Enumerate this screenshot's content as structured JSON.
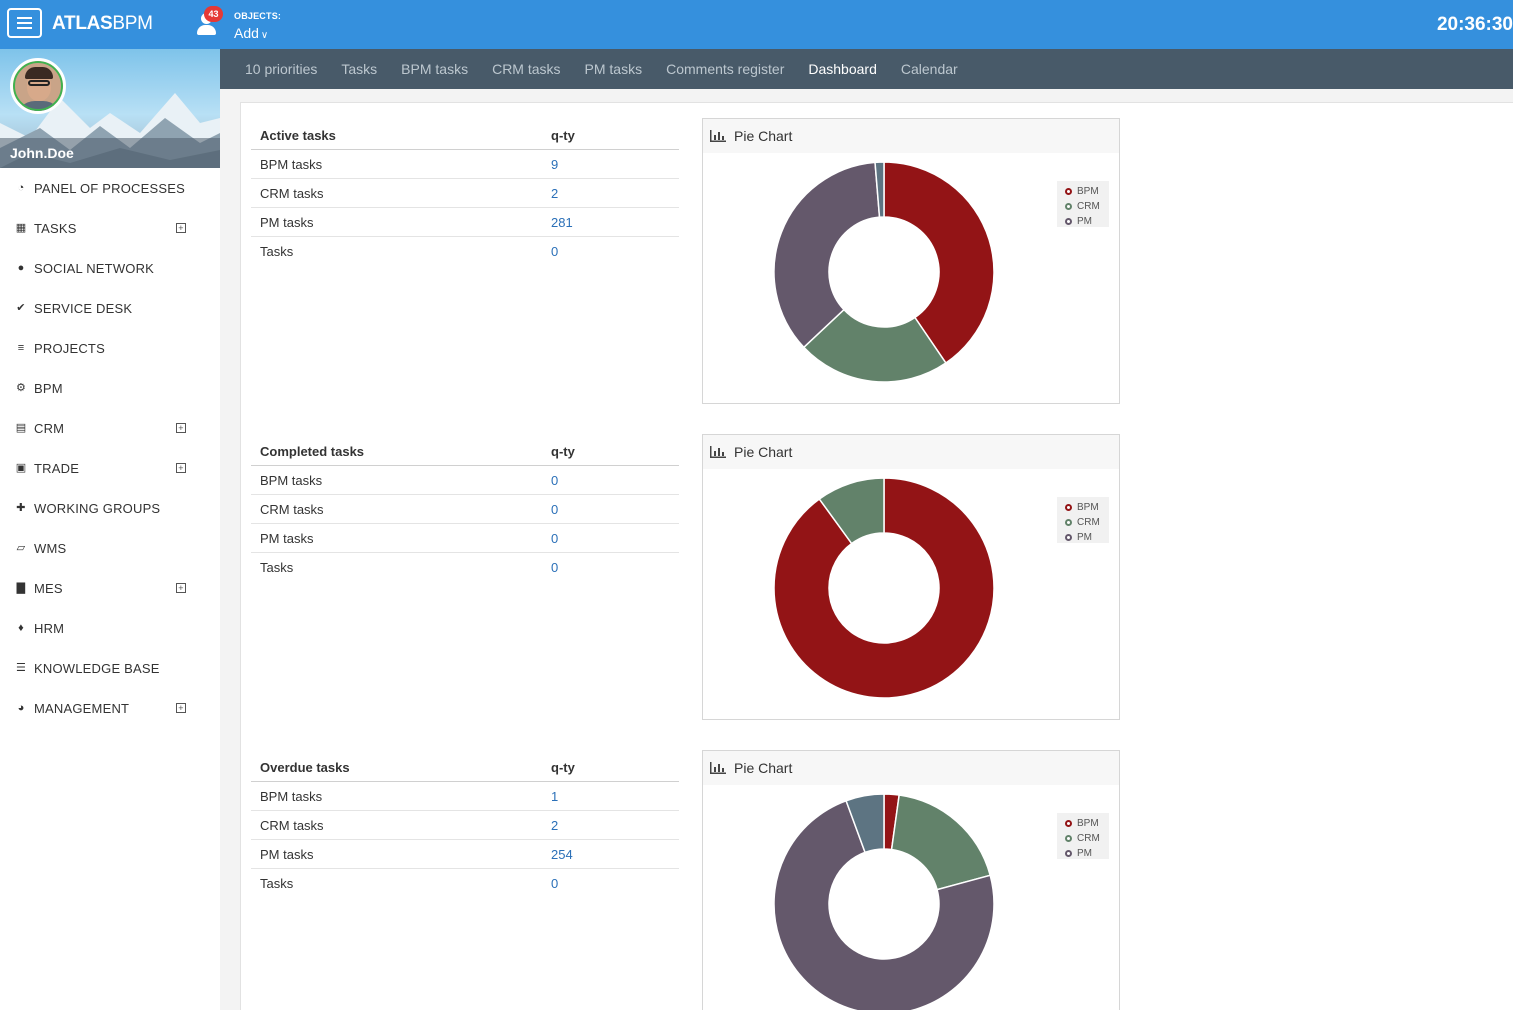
{
  "app": {
    "logo_bold": "ATLAS",
    "logo_light": "BPM",
    "notification_count": "43",
    "objects_label": "OBJECTS:",
    "add_label": "Add",
    "clock": "20:36:30"
  },
  "user": {
    "name": "John.Doe"
  },
  "sidebar": {
    "items": [
      {
        "label": "PANEL OF PROCESSES",
        "icon": "dashboard-icon",
        "expandable": false
      },
      {
        "label": "TASKS",
        "icon": "calendar-icon",
        "expandable": true
      },
      {
        "label": "SOCIAL NETWORK",
        "icon": "chat-icon",
        "expandable": false
      },
      {
        "label": "SERVICE DESK",
        "icon": "check-icon",
        "expandable": false
      },
      {
        "label": "PROJECTS",
        "icon": "tasks-icon",
        "expandable": false
      },
      {
        "label": "BPM",
        "icon": "cogs-icon",
        "expandable": false
      },
      {
        "label": "CRM",
        "icon": "book-icon",
        "expandable": true
      },
      {
        "label": "TRADE",
        "icon": "money-icon",
        "expandable": true
      },
      {
        "label": "WORKING GROUPS",
        "icon": "puzzle-icon",
        "expandable": false
      },
      {
        "label": "WMS",
        "icon": "folder-open-icon",
        "expandable": false
      },
      {
        "label": "MES",
        "icon": "industry-icon",
        "expandable": true
      },
      {
        "label": "HRM",
        "icon": "users-icon",
        "expandable": false
      },
      {
        "label": "KNOWLEDGE BASE",
        "icon": "database-icon",
        "expandable": false
      },
      {
        "label": "MANAGEMENT",
        "icon": "pie-chart-icon",
        "expandable": true
      }
    ],
    "expand_glyph": "+"
  },
  "subnav": {
    "tabs": [
      {
        "label": "10 priorities",
        "active": false
      },
      {
        "label": "Tasks",
        "active": false
      },
      {
        "label": "BPM tasks",
        "active": false
      },
      {
        "label": "CRM tasks",
        "active": false
      },
      {
        "label": "PM tasks",
        "active": false
      },
      {
        "label": "Comments register",
        "active": false
      },
      {
        "label": "Dashboard",
        "active": true
      },
      {
        "label": "Calendar",
        "active": false
      }
    ]
  },
  "colors": {
    "topbar": "#3590dd",
    "subnav": "#485a69",
    "bpm": "#931416",
    "crm": "#62826a",
    "pm": "#64586b",
    "other": "#5d7482"
  },
  "sections": [
    {
      "title": "Active tasks",
      "qty_header": "q-ty",
      "rows": [
        {
          "name": "BPM tasks",
          "qty": "9"
        },
        {
          "name": "CRM tasks",
          "qty": "2"
        },
        {
          "name": "PM tasks",
          "qty": "281"
        },
        {
          "name": "Tasks",
          "qty": "0"
        }
      ],
      "panel_title": "Pie Chart"
    },
    {
      "title": "Completed tasks",
      "qty_header": "q-ty",
      "rows": [
        {
          "name": "BPM tasks",
          "qty": "0"
        },
        {
          "name": "CRM tasks",
          "qty": "0"
        },
        {
          "name": "PM tasks",
          "qty": "0"
        },
        {
          "name": "Tasks",
          "qty": "0"
        }
      ],
      "panel_title": "Pie Chart"
    },
    {
      "title": "Overdue tasks",
      "qty_header": "q-ty",
      "rows": [
        {
          "name": "BPM tasks",
          "qty": "1"
        },
        {
          "name": "CRM tasks",
          "qty": "2"
        },
        {
          "name": "PM tasks",
          "qty": "254"
        },
        {
          "name": "Tasks",
          "qty": "0"
        }
      ],
      "panel_title": "Pie Chart"
    }
  ],
  "chart_data": [
    {
      "type": "pie",
      "title": "Pie Chart",
      "legend": [
        "BPM",
        "CRM",
        "PM"
      ],
      "legend_position": "top-right",
      "slices": [
        {
          "label": "BPM",
          "value": 40.5,
          "color": "#931416"
        },
        {
          "label": "CRM",
          "value": 22.5,
          "color": "#62826a"
        },
        {
          "label": "PM",
          "value": 35.7,
          "color": "#64586b"
        },
        {
          "label": "",
          "value": 1.3,
          "color": "#5d7482"
        }
      ]
    },
    {
      "type": "pie",
      "title": "Pie Chart",
      "legend": [
        "BPM",
        "CRM",
        "PM"
      ],
      "legend_position": "top-right",
      "slices": [
        {
          "label": "BPM",
          "value": 90,
          "color": "#931416"
        },
        {
          "label": "CRM",
          "value": 10,
          "color": "#62826a"
        }
      ]
    },
    {
      "type": "pie",
      "title": "Pie Chart",
      "legend": [
        "BPM",
        "CRM",
        "PM"
      ],
      "legend_position": "top-right",
      "slices": [
        {
          "label": "BPM",
          "value": 2.2,
          "color": "#931416"
        },
        {
          "label": "CRM",
          "value": 18.6,
          "color": "#62826a"
        },
        {
          "label": "PM",
          "value": 73.6,
          "color": "#64586b"
        },
        {
          "label": "",
          "value": 5.6,
          "color": "#5d7482"
        }
      ]
    }
  ]
}
